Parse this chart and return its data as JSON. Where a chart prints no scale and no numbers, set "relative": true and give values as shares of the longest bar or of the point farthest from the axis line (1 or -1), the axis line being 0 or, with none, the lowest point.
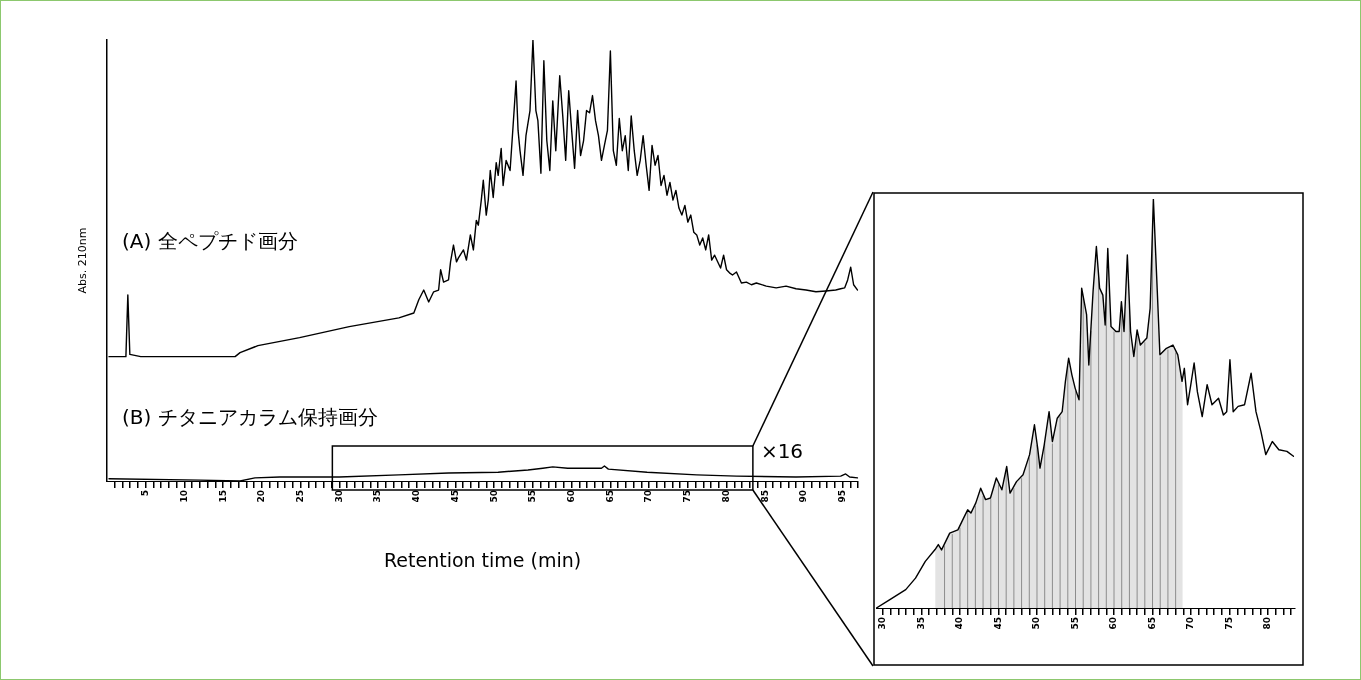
{
  "chart_data": [
    {
      "type": "line",
      "ylabel": "Abs. 210nm",
      "xlabel": "Retention time (min)",
      "relative": true,
      "xlim": [
        0,
        97
      ],
      "xticks": [
        {
          "value": 1,
          "label": null
        },
        {
          "value": 2,
          "label": null
        },
        {
          "value": 3,
          "label": null
        },
        {
          "value": 4,
          "label": null
        },
        5,
        {
          "value": 6,
          "label": null
        },
        {
          "value": 7,
          "label": null
        },
        {
          "value": 8,
          "label": null
        },
        {
          "value": 9,
          "label": null
        },
        10,
        {
          "value": 11,
          "label": null
        },
        {
          "value": 12,
          "label": null
        },
        {
          "value": 13,
          "label": null
        },
        {
          "value": 14,
          "label": null
        },
        15,
        {
          "value": 16,
          "label": null
        },
        {
          "value": 17,
          "label": null
        },
        {
          "value": 18,
          "label": null
        },
        {
          "value": 19,
          "label": null
        },
        20,
        {
          "value": 21,
          "label": null
        },
        {
          "value": 22,
          "label": null
        },
        {
          "value": 23,
          "label": null
        },
        {
          "value": 24,
          "label": null
        },
        25,
        {
          "value": 26,
          "label": null
        },
        {
          "value": 27,
          "label": null
        },
        {
          "value": 28,
          "label": null
        },
        {
          "value": 29,
          "label": null
        },
        30,
        {
          "value": 31,
          "label": null
        },
        {
          "value": 32,
          "label": null
        },
        {
          "value": 33,
          "label": null
        },
        {
          "value": 34,
          "label": null
        },
        35,
        {
          "value": 36,
          "label": null
        },
        {
          "value": 37,
          "label": null
        },
        {
          "value": 38,
          "label": null
        },
        {
          "value": 39,
          "label": null
        },
        40,
        {
          "value": 41,
          "label": null
        },
        {
          "value": 42,
          "label": null
        },
        {
          "value": 43,
          "label": null
        },
        {
          "value": 44,
          "label": null
        },
        45,
        {
          "value": 46,
          "label": null
        },
        {
          "value": 47,
          "label": null
        },
        {
          "value": 48,
          "label": null
        },
        {
          "value": 49,
          "label": null
        },
        50,
        {
          "value": 51,
          "label": null
        },
        {
          "value": 52,
          "label": null
        },
        {
          "value": 53,
          "label": null
        },
        {
          "value": 54,
          "label": null
        },
        55,
        {
          "value": 56,
          "label": null
        },
        {
          "value": 57,
          "label": null
        },
        {
          "value": 58,
          "label": null
        },
        {
          "value": 59,
          "label": null
        },
        60,
        {
          "value": 61,
          "label": null
        },
        {
          "value": 62,
          "label": null
        },
        {
          "value": 63,
          "label": null
        },
        {
          "value": 64,
          "label": null
        },
        65,
        {
          "value": 66,
          "label": null
        },
        {
          "value": 67,
          "label": null
        },
        {
          "value": 68,
          "label": null
        },
        {
          "value": 69,
          "label": null
        },
        70,
        {
          "value": 71,
          "label": null
        },
        {
          "value": 72,
          "label": null
        },
        {
          "value": 73,
          "label": null
        },
        {
          "value": 74,
          "label": null
        },
        75,
        {
          "value": 76,
          "label": null
        },
        {
          "value": 77,
          "label": null
        },
        {
          "value": 78,
          "label": null
        },
        {
          "value": 79,
          "label": null
        },
        80,
        {
          "value": 81,
          "label": null
        },
        {
          "value": 82,
          "label": null
        },
        {
          "value": 83,
          "label": null
        },
        {
          "value": 84,
          "label": null
        },
        85,
        {
          "value": 86,
          "label": null
        },
        {
          "value": 87,
          "label": null
        },
        {
          "value": 88,
          "label": null
        },
        {
          "value": 89,
          "label": null
        },
        90,
        {
          "value": 91,
          "label": null
        },
        {
          "value": 92,
          "label": null
        },
        {
          "value": 93,
          "label": null
        },
        {
          "value": 94,
          "label": null
        },
        95,
        {
          "value": 96,
          "label": null
        },
        {
          "value": 97,
          "label": null
        }
      ],
      "annotations": [
        "×16"
      ],
      "series": [
        {
          "name": "(A) 全ペプチド画分",
          "color": "#000000",
          "x": [
            0.26,
            2.44,
            2.69,
            2.95,
            4.36,
            16.54,
            17.18,
            19.49,
            24.87,
            31.28,
            37.69,
            39.62,
            40.26,
            40.9,
            41.54,
            42.18,
            42.82,
            43.08,
            43.46,
            44.1,
            44.36,
            44.74,
            45.13,
            45.38,
            46.03,
            46.41,
            46.92,
            47.31,
            47.69,
            47.95,
            48.33,
            48.59,
            48.97,
            49.23,
            49.49,
            49.87,
            50.26,
            50.51,
            50.9,
            51.15,
            51.54,
            52.05,
            52.44,
            52.82,
            53.08,
            53.33,
            53.72,
            54.1,
            54.62,
            55,
            55.38,
            55.64,
            56.03,
            56.41,
            56.79,
            57.18,
            57.56,
            57.95,
            58.46,
            58.85,
            59.23,
            59.62,
            60,
            60.38,
            60.77,
            61.15,
            61.54,
            61.92,
            62.31,
            62.69,
            63.08,
            63.46,
            63.85,
            64.23,
            64.62,
            65,
            65.38,
            65.77,
            66.15,
            66.54,
            66.92,
            67.31,
            67.69,
            68.08,
            68.46,
            68.85,
            69.23,
            69.62,
            70,
            70.38,
            70.77,
            71.15,
            71.54,
            71.92,
            72.31,
            72.69,
            73.08,
            73.46,
            73.85,
            74.23,
            74.62,
            75,
            75.38,
            75.77,
            76.15,
            76.54,
            76.92,
            77.31,
            77.69,
            78.08,
            78.46,
            78.85,
            79.23,
            79.62,
            80,
            80.38,
            80.77,
            81.28,
            81.92,
            82.56,
            83.21,
            83.85,
            85.13,
            86.41,
            87.69,
            88.97,
            90.26,
            91.54,
            92.82,
            94.1,
            94.74,
            95.26,
            95.64,
            96.03,
            96.41,
            96.92
          ],
          "values": [
            0.282,
            0.282,
            0.422,
            0.287,
            0.282,
            0.282,
            0.291,
            0.307,
            0.325,
            0.35,
            0.37,
            0.381,
            0.411,
            0.433,
            0.406,
            0.429,
            0.433,
            0.479,
            0.451,
            0.456,
            0.497,
            0.535,
            0.497,
            0.506,
            0.524,
            0.501,
            0.558,
            0.524,
            0.591,
            0.58,
            0.637,
            0.682,
            0.603,
            0.637,
            0.704,
            0.643,
            0.722,
            0.693,
            0.754,
            0.67,
            0.727,
            0.704,
            0.806,
            0.907,
            0.795,
            0.749,
            0.693,
            0.783,
            0.84,
            1,
            0.84,
            0.817,
            0.698,
            0.953,
            0.772,
            0.704,
            0.862,
            0.749,
            0.919,
            0.828,
            0.727,
            0.885,
            0.795,
            0.709,
            0.84,
            0.738,
            0.772,
            0.84,
            0.835,
            0.874,
            0.817,
            0.783,
            0.727,
            0.761,
            0.795,
            0.975,
            0.749,
            0.716,
            0.822,
            0.749,
            0.783,
            0.704,
            0.828,
            0.749,
            0.693,
            0.727,
            0.783,
            0.716,
            0.659,
            0.761,
            0.716,
            0.738,
            0.67,
            0.693,
            0.648,
            0.677,
            0.637,
            0.659,
            0.619,
            0.603,
            0.625,
            0.587,
            0.603,
            0.564,
            0.558,
            0.535,
            0.551,
            0.524,
            0.558,
            0.501,
            0.512,
            0.497,
            0.483,
            0.512,
            0.479,
            0.472,
            0.467,
            0.474,
            0.449,
            0.451,
            0.445,
            0.449,
            0.442,
            0.438,
            0.442,
            0.436,
            0.433,
            0.429,
            0.431,
            0.433,
            0.436,
            0.438,
            0.456,
            0.485,
            0.445,
            0.433
          ]
        },
        {
          "name": "(B) チタニアカラム保持画分",
          "color": "#000000",
          "x": [
            0.26,
            12.05,
            17.18,
            19.1,
            22.31,
            30,
            37.69,
            44.1,
            50.51,
            54.36,
            56.28,
            57.56,
            59.49,
            61.92,
            63.85,
            64.23,
            64.74,
            69.74,
            76.15,
            81.28,
            88.97,
            94.74,
            95.38,
            95.9,
            96.92
          ],
          "values": [
            0.005,
            0.002,
            0,
            0.007,
            0.009,
            0.009,
            0.014,
            0.018,
            0.02,
            0.025,
            0.029,
            0.032,
            0.029,
            0.029,
            0.029,
            0.034,
            0.027,
            0.02,
            0.014,
            0.011,
            0.009,
            0.011,
            0.016,
            0.009,
            0.007
          ]
        }
      ]
    },
    {
      "type": "line",
      "relative": true,
      "xlim": [
        29.1,
        83.4
      ],
      "xticks": [
        30,
        {
          "value": 31,
          "label": null
        },
        {
          "value": 32,
          "label": null
        },
        {
          "value": 33,
          "label": null
        },
        {
          "value": 34,
          "label": null
        },
        35,
        {
          "value": 36,
          "label": null
        },
        {
          "value": 37,
          "label": null
        },
        {
          "value": 38,
          "label": null
        },
        {
          "value": 39,
          "label": null
        },
        40,
        {
          "value": 41,
          "label": null
        },
        {
          "value": 42,
          "label": null
        },
        {
          "value": 43,
          "label": null
        },
        {
          "value": 44,
          "label": null
        },
        45,
        {
          "value": 46,
          "label": null
        },
        {
          "value": 47,
          "label": null
        },
        {
          "value": 48,
          "label": null
        },
        {
          "value": 49,
          "label": null
        },
        50,
        {
          "value": 51,
          "label": null
        },
        {
          "value": 52,
          "label": null
        },
        {
          "value": 53,
          "label": null
        },
        {
          "value": 54,
          "label": null
        },
        55,
        {
          "value": 56,
          "label": null
        },
        {
          "value": 57,
          "label": null
        },
        {
          "value": 58,
          "label": null
        },
        {
          "value": 59,
          "label": null
        },
        60,
        {
          "value": 61,
          "label": null
        },
        {
          "value": 62,
          "label": null
        },
        {
          "value": 63,
          "label": null
        },
        {
          "value": 64,
          "label": null
        },
        65,
        {
          "value": 66,
          "label": null
        },
        {
          "value": 67,
          "label": null
        },
        {
          "value": 68,
          "label": null
        },
        {
          "value": 69,
          "label": null
        },
        70,
        {
          "value": 71,
          "label": null
        },
        {
          "value": 72,
          "label": null
        },
        {
          "value": 73,
          "label": null
        },
        {
          "value": 74,
          "label": null
        },
        75,
        {
          "value": 76,
          "label": null
        },
        {
          "value": 77,
          "label": null
        },
        {
          "value": 78,
          "label": null
        },
        {
          "value": 79,
          "label": null
        },
        80,
        {
          "value": 81,
          "label": null
        },
        {
          "value": 82,
          "label": null
        },
        {
          "value": 83,
          "label": null
        }
      ],
      "bands": [
        {
          "axis": "x",
          "from": 36.8,
          "to": 68.9,
          "color": "#e3e3e3"
        }
      ],
      "ref_lines": [
        {
          "axis": "x",
          "value": 38,
          "color": "#8c8c8c"
        },
        {
          "axis": "x",
          "value": 39,
          "color": "#8c8c8c"
        },
        {
          "axis": "x",
          "value": 40,
          "color": "#8c8c8c"
        },
        {
          "axis": "x",
          "value": 41,
          "color": "#8c8c8c"
        },
        {
          "axis": "x",
          "value": 42,
          "color": "#8c8c8c"
        },
        {
          "axis": "x",
          "value": 43,
          "color": "#8c8c8c"
        },
        {
          "axis": "x",
          "value": 44,
          "color": "#8c8c8c"
        },
        {
          "axis": "x",
          "value": 45,
          "color": "#8c8c8c"
        },
        {
          "axis": "x",
          "value": 46,
          "color": "#8c8c8c"
        },
        {
          "axis": "x",
          "value": 47,
          "color": "#8c8c8c"
        },
        {
          "axis": "x",
          "value": 48,
          "color": "#8c8c8c"
        },
        {
          "axis": "x",
          "value": 49,
          "color": "#8c8c8c"
        },
        {
          "axis": "x",
          "value": 50,
          "color": "#8c8c8c"
        },
        {
          "axis": "x",
          "value": 51,
          "color": "#8c8c8c"
        },
        {
          "axis": "x",
          "value": 52,
          "color": "#8c8c8c"
        },
        {
          "axis": "x",
          "value": 53,
          "color": "#8c8c8c"
        },
        {
          "axis": "x",
          "value": 54,
          "color": "#8c8c8c"
        },
        {
          "axis": "x",
          "value": 55,
          "color": "#8c8c8c"
        },
        {
          "axis": "x",
          "value": 56,
          "color": "#8c8c8c"
        },
        {
          "axis": "x",
          "value": 57,
          "color": "#8c8c8c"
        },
        {
          "axis": "x",
          "value": 58,
          "color": "#8c8c8c"
        },
        {
          "axis": "x",
          "value": 59,
          "color": "#8c8c8c"
        },
        {
          "axis": "x",
          "value": 60,
          "color": "#8c8c8c"
        },
        {
          "axis": "x",
          "value": 61,
          "color": "#8c8c8c"
        },
        {
          "axis": "x",
          "value": 62,
          "color": "#8c8c8c"
        },
        {
          "axis": "x",
          "value": 63,
          "color": "#8c8c8c"
        },
        {
          "axis": "x",
          "value": 64,
          "color": "#8c8c8c"
        },
        {
          "axis": "x",
          "value": 65,
          "color": "#8c8c8c"
        },
        {
          "axis": "x",
          "value": 66,
          "color": "#8c8c8c"
        },
        {
          "axis": "x",
          "value": 67,
          "color": "#8c8c8c"
        },
        {
          "axis": "x",
          "value": 68,
          "color": "#8c8c8c"
        }
      ],
      "series": [
        {
          "color": "#000000",
          "x": [
            29.15,
            30.85,
            32.96,
            34.23,
            35.5,
            36.77,
            37.19,
            37.61,
            38.67,
            39.73,
            40.58,
            41,
            41.42,
            42.06,
            42.69,
            43.32,
            43.96,
            44.72,
            45.44,
            46.07,
            46.5,
            47.34,
            48.19,
            49.04,
            49.67,
            50.09,
            50.39,
            50.94,
            51.57,
            52,
            52.63,
            53.27,
            53.69,
            54.11,
            54.53,
            54.96,
            55.46,
            55.8,
            56.44,
            56.73,
            57.28,
            57.71,
            58.13,
            58.55,
            58.85,
            59.19,
            59.61,
            60.25,
            60.67,
            60.96,
            61.3,
            61.73,
            62.15,
            62.57,
            63,
            63.42,
            64.26,
            64.69,
            65.11,
            65.62,
            65.96,
            66.8,
            67.65,
            68.28,
            68.83,
            69.13,
            69.55,
            69.97,
            70.4,
            70.82,
            71.45,
            72.09,
            72.72,
            73.57,
            74.2,
            74.63,
            75.05,
            75.47,
            76.11,
            76.95,
            77.8,
            78.43,
            79.07,
            79.7,
            80.55,
            81.4,
            82.45,
            83.3
          ],
          "values": [
            0,
            0.02,
            0.045,
            0.073,
            0.114,
            0.143,
            0.155,
            0.142,
            0.183,
            0.191,
            0.224,
            0.24,
            0.232,
            0.257,
            0.293,
            0.265,
            0.269,
            0.318,
            0.289,
            0.346,
            0.281,
            0.309,
            0.326,
            0.375,
            0.448,
            0.391,
            0.342,
            0.399,
            0.48,
            0.407,
            0.464,
            0.48,
            0.554,
            0.611,
            0.57,
            0.537,
            0.509,
            0.782,
            0.717,
            0.594,
            0.774,
            0.884,
            0.782,
            0.765,
            0.692,
            0.879,
            0.688,
            0.676,
            0.676,
            0.749,
            0.676,
            0.863,
            0.676,
            0.615,
            0.68,
            0.643,
            0.66,
            0.733,
            1,
            0.774,
            0.619,
            0.635,
            0.643,
            0.619,
            0.554,
            0.586,
            0.497,
            0.546,
            0.599,
            0.529,
            0.468,
            0.546,
            0.497,
            0.513,
            0.472,
            0.48,
            0.607,
            0.48,
            0.493,
            0.497,
            0.574,
            0.48,
            0.432,
            0.375,
            0.407,
            0.387,
            0.383,
            0.371
          ]
        }
      ]
    }
  ]
}
